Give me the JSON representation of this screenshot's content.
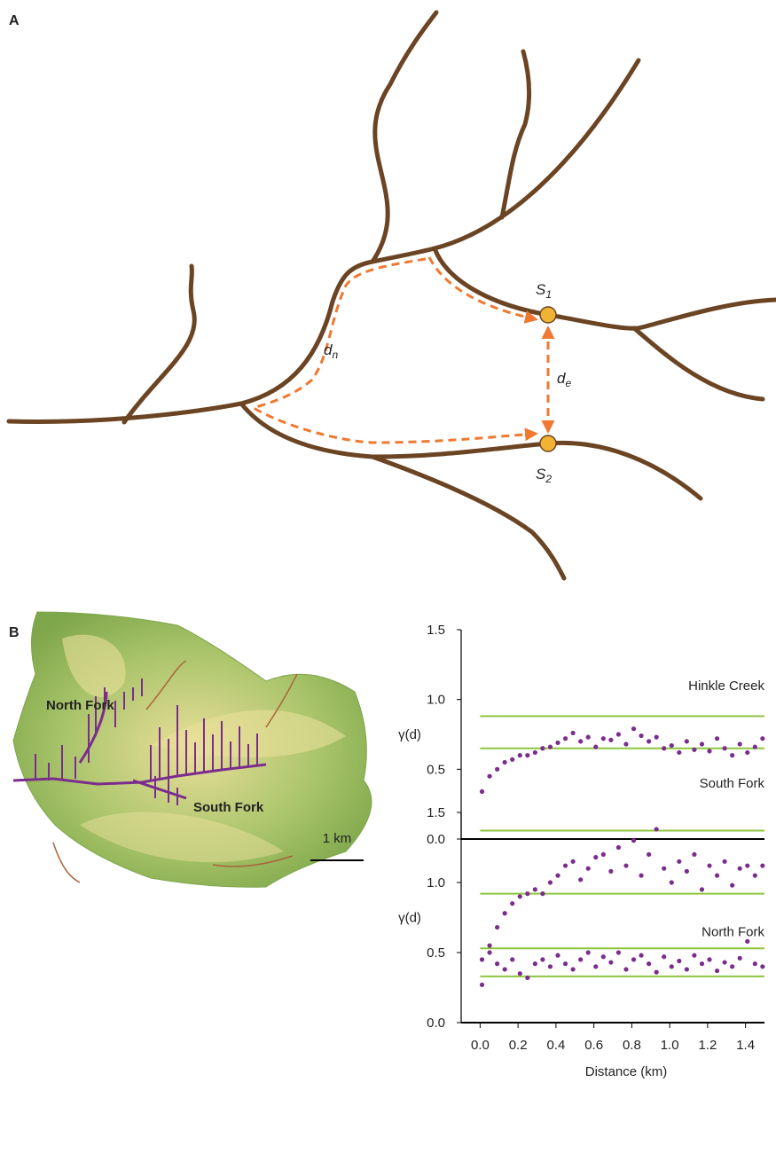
{
  "panel_a": {
    "label": "A",
    "s1": {
      "symbol": "S",
      "subscript": "1"
    },
    "s2": {
      "symbol": "S",
      "subscript": "2"
    },
    "dn": {
      "symbol": "d",
      "subscript": "n"
    },
    "de": {
      "symbol": "d",
      "subscript": "e"
    }
  },
  "panel_b": {
    "label": "B",
    "north_fork": "North Fork",
    "south_fork": "South Fork",
    "scale_bar": "1 km"
  },
  "chart_data": [
    {
      "type": "scatter",
      "title": "Hinkle Creek",
      "y_label": "γ(d)",
      "x": [
        0.01,
        0.05,
        0.09,
        0.13,
        0.17,
        0.21,
        0.25,
        0.29,
        0.33,
        0.37,
        0.41,
        0.45,
        0.49,
        0.53,
        0.57,
        0.61,
        0.65,
        0.69,
        0.73,
        0.77,
        0.81,
        0.85,
        0.89,
        0.93,
        0.97,
        1.01,
        1.05,
        1.09,
        1.13,
        1.17,
        1.21,
        1.25,
        1.29,
        1.33,
        1.37,
        1.41,
        1.45,
        1.49
      ],
      "values": [
        0.34,
        0.45,
        0.5,
        0.55,
        0.57,
        0.6,
        0.6,
        0.62,
        0.65,
        0.66,
        0.69,
        0.72,
        0.76,
        0.7,
        0.73,
        0.66,
        0.72,
        0.71,
        0.75,
        0.68,
        0.79,
        0.74,
        0.7,
        0.73,
        0.65,
        0.67,
        0.62,
        0.7,
        0.64,
        0.68,
        0.63,
        0.72,
        0.65,
        0.6,
        0.68,
        0.62,
        0.66,
        0.72
      ],
      "color": "#7b2d8e",
      "reference_lines": [
        0.88,
        0.65
      ],
      "reference_color": "#8dc63f",
      "xlim": [
        -0.1,
        1.5
      ],
      "ylim": [
        0,
        1.5
      ],
      "yticks": [
        {
          "value": 0,
          "label": "0.0"
        },
        0.5,
        {
          "value": 1,
          "label": "1.0"
        },
        1.5
      ]
    },
    {
      "type": "scatter",
      "y_label": "γ(d)",
      "x_label": "Distance (km)",
      "x": [
        0.01,
        0.05,
        0.09,
        0.13,
        0.17,
        0.21,
        0.25,
        0.29,
        0.33,
        0.37,
        0.41,
        0.45,
        0.49,
        0.53,
        0.57,
        0.61,
        0.65,
        0.69,
        0.73,
        0.77,
        0.81,
        0.85,
        0.89,
        0.93,
        0.97,
        1.01,
        1.05,
        1.09,
        1.13,
        1.17,
        1.21,
        1.25,
        1.29,
        1.33,
        1.37,
        1.41,
        1.45,
        1.49
      ],
      "series": [
        {
          "name": "South Fork",
          "color": "#7b2d8e",
          "values": [
            0.45,
            0.55,
            0.68,
            0.78,
            0.85,
            0.9,
            0.92,
            0.95,
            0.92,
            1.0,
            1.05,
            1.12,
            1.15,
            1.02,
            1.1,
            1.18,
            1.2,
            1.08,
            1.25,
            1.12,
            1.3,
            1.05,
            1.2,
            1.38,
            1.1,
            1.0,
            1.15,
            1.08,
            1.2,
            0.95,
            1.12,
            1.05,
            1.15,
            0.98,
            1.1,
            1.12,
            1.05,
            1.12
          ]
        },
        {
          "name": "North Fork",
          "color": "#7b2d8e",
          "values": [
            0.27,
            0.5,
            0.42,
            0.38,
            0.45,
            0.35,
            0.32,
            0.42,
            0.45,
            0.4,
            0.48,
            0.42,
            0.38,
            0.45,
            0.5,
            0.4,
            0.47,
            0.43,
            0.5,
            0.38,
            0.45,
            0.48,
            0.42,
            0.36,
            0.47,
            0.4,
            0.44,
            0.38,
            0.48,
            0.42,
            0.45,
            0.37,
            0.43,
            0.4,
            0.46,
            0.58,
            0.42,
            0.4
          ]
        }
      ],
      "reference_lines": [
        1.37,
        0.92,
        0.53,
        0.33
      ],
      "reference_color": "#8dc63f",
      "xlim": [
        -0.1,
        1.5
      ],
      "ylim": [
        0,
        1.5
      ],
      "yticks": [
        {
          "value": 0,
          "label": "0.0"
        },
        0.5,
        {
          "value": 1,
          "label": "1.0"
        },
        1.5
      ],
      "xticks": [
        {
          "value": 0,
          "label": "0.0"
        },
        0.2,
        0.4,
        0.6,
        0.8,
        {
          "value": 1,
          "label": "1.0"
        },
        1.2,
        1.4
      ]
    }
  ]
}
